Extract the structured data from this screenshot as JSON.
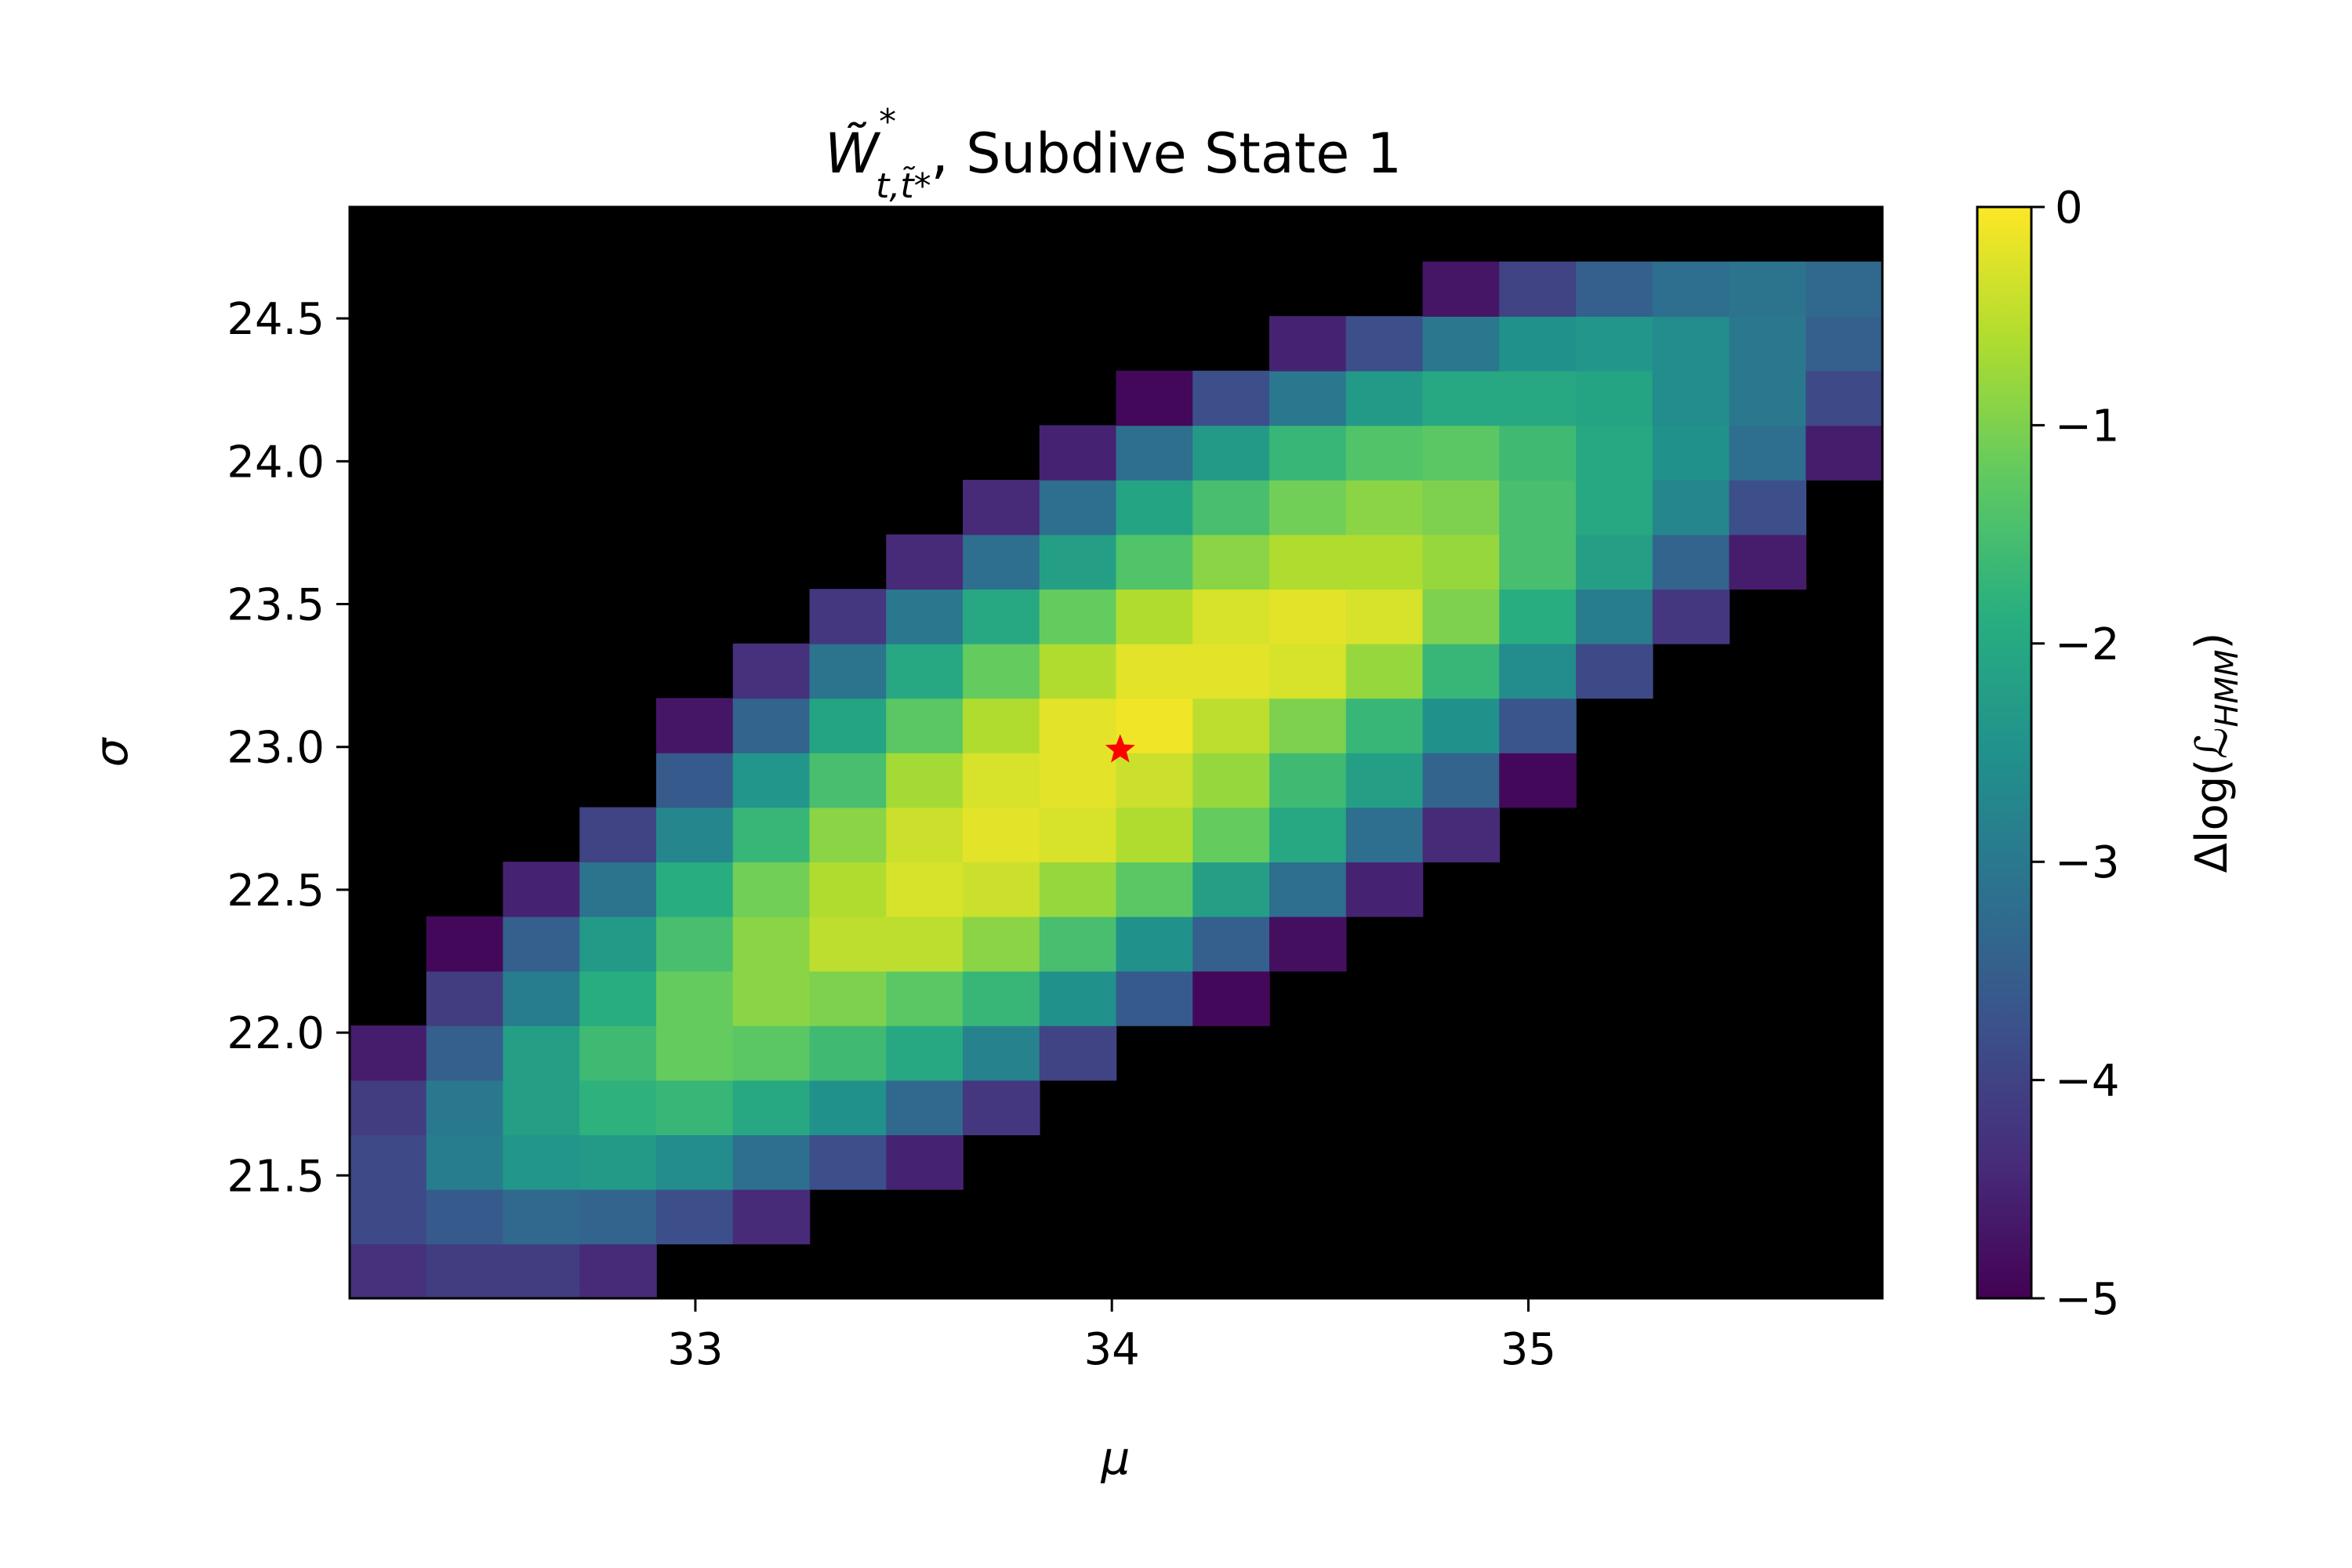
{
  "chart_data": {
    "type": "heatmap",
    "title_main": "W̃",
    "title_sup": "*",
    "title_sub": "t,t̃*",
    "title_rest": ", Subdive State 1",
    "xlabel": "μ",
    "ylabel": "σ",
    "xlim": [
      32.17,
      35.85
    ],
    "ylim": [
      21.07,
      24.89
    ],
    "x_ticks": [
      33,
      34,
      35
    ],
    "x_tick_labels": [
      "33",
      "34",
      "35"
    ],
    "y_ticks": [
      21.5,
      22.0,
      22.5,
      23.0,
      23.5,
      24.0,
      24.5
    ],
    "y_tick_labels": [
      "21.5",
      "22.0",
      "22.5",
      "23.0",
      "23.5",
      "24.0",
      "24.5"
    ],
    "cell_x_start": 32.17,
    "cell_x_step": 0.184,
    "cell_y_start": 21.07,
    "cell_y_step": 0.191,
    "z_masked_below": -5,
    "z": [
      [
        -4.3,
        -4.1,
        -4.1,
        -4.4,
        null,
        null,
        null,
        null,
        null,
        null,
        null,
        null,
        null,
        null,
        null,
        null,
        null,
        null,
        null,
        null
      ],
      [
        -3.9,
        -3.6,
        -3.3,
        -3.4,
        -3.8,
        -4.4,
        null,
        null,
        null,
        null,
        null,
        null,
        null,
        null,
        null,
        null,
        null,
        null,
        null,
        null
      ],
      [
        -3.9,
        -2.9,
        -2.4,
        -2.3,
        -2.6,
        -3.2,
        -3.8,
        -4.5,
        null,
        null,
        null,
        null,
        null,
        null,
        null,
        null,
        null,
        null,
        null,
        null
      ],
      [
        -4.1,
        -3.0,
        -2.2,
        -1.8,
        -1.7,
        -2.0,
        -2.5,
        -3.3,
        -4.2,
        null,
        null,
        null,
        null,
        null,
        null,
        null,
        null,
        null,
        null,
        null
      ],
      [
        -4.6,
        -3.5,
        -2.2,
        -1.6,
        -1.2,
        -1.3,
        -1.6,
        -2.0,
        -2.8,
        -4.0,
        null,
        null,
        null,
        null,
        null,
        null,
        null,
        null,
        null,
        null
      ],
      [
        null,
        -4.1,
        -2.9,
        -1.9,
        -1.2,
        -0.9,
        -1.0,
        -1.3,
        -1.7,
        -2.5,
        -3.6,
        -4.9,
        null,
        null,
        null,
        null,
        null,
        null,
        null,
        null
      ],
      [
        null,
        -4.9,
        -3.5,
        -2.3,
        -1.5,
        -0.9,
        -0.5,
        -0.5,
        -0.9,
        -1.5,
        -2.5,
        -3.5,
        -4.8,
        null,
        null,
        null,
        null,
        null,
        null,
        null
      ],
      [
        null,
        null,
        -4.5,
        -3.1,
        -1.9,
        -1.1,
        -0.6,
        -0.3,
        -0.4,
        -0.8,
        -1.3,
        -2.2,
        -3.2,
        -4.5,
        null,
        null,
        null,
        null,
        null,
        null
      ],
      [
        null,
        null,
        null,
        -4.0,
        -2.7,
        -1.7,
        -0.9,
        -0.4,
        -0.2,
        -0.3,
        -0.6,
        -1.2,
        -2.0,
        -3.2,
        -4.4,
        null,
        null,
        null,
        null,
        null
      ],
      [
        null,
        null,
        null,
        null,
        -3.6,
        -2.4,
        -1.5,
        -0.7,
        -0.3,
        -0.2,
        -0.4,
        -0.8,
        -1.6,
        -2.2,
        -3.4,
        -4.9,
        null,
        null,
        null,
        null
      ],
      [
        null,
        null,
        null,
        null,
        -4.7,
        -3.4,
        -2.1,
        -1.3,
        -0.6,
        -0.2,
        -0.1,
        -0.5,
        -1.0,
        -1.7,
        -2.5,
        -3.7,
        null,
        null,
        null,
        null
      ],
      [
        null,
        null,
        null,
        null,
        null,
        -4.3,
        -3.1,
        -2.0,
        -1.2,
        -0.6,
        -0.2,
        -0.2,
        -0.3,
        -0.8,
        -1.7,
        -2.6,
        -3.9,
        null,
        null,
        null
      ],
      [
        null,
        null,
        null,
        null,
        null,
        null,
        -4.2,
        -3.0,
        -2.0,
        -1.2,
        -0.6,
        -0.3,
        -0.2,
        -0.3,
        -1.0,
        -1.9,
        -2.9,
        -4.2,
        null,
        null
      ],
      [
        null,
        null,
        null,
        null,
        null,
        null,
        null,
        -4.4,
        -3.2,
        -2.2,
        -1.4,
        -0.9,
        -0.6,
        -0.6,
        -0.8,
        -1.5,
        -2.2,
        -3.4,
        -4.6,
        null
      ],
      [
        null,
        null,
        null,
        null,
        null,
        null,
        null,
        null,
        -4.4,
        -3.2,
        -2.1,
        -1.5,
        -1.1,
        -0.9,
        -1.0,
        -1.5,
        -2.0,
        -2.7,
        -3.8,
        null
      ],
      [
        null,
        null,
        null,
        null,
        null,
        null,
        null,
        null,
        null,
        -4.5,
        -3.2,
        -2.3,
        -1.7,
        -1.4,
        -1.3,
        -1.6,
        -2.0,
        -2.5,
        -3.2,
        -4.6
      ],
      [
        null,
        null,
        null,
        null,
        null,
        null,
        null,
        null,
        null,
        null,
        -4.9,
        -3.8,
        -3.0,
        -2.3,
        -2.0,
        -2.0,
        -2.1,
        -2.6,
        -3.0,
        -3.9
      ],
      [
        null,
        null,
        null,
        null,
        null,
        null,
        null,
        null,
        null,
        null,
        null,
        null,
        -4.5,
        -3.8,
        -3.0,
        -2.5,
        -2.4,
        -2.6,
        -3.0,
        -3.5
      ],
      [
        null,
        null,
        null,
        null,
        null,
        null,
        null,
        null,
        null,
        null,
        null,
        null,
        null,
        null,
        -4.7,
        -4.0,
        -3.5,
        -3.2,
        -3.1,
        -3.3
      ]
    ],
    "best_fit_marker": {
      "x": 34.02,
      "y": 22.99,
      "color": "#ff0000",
      "symbol": "star"
    },
    "colorbar": {
      "label": "Δlog(ℒ_HMM)",
      "label_main": "Δlog(ℒ",
      "label_sub": "HMM",
      "label_close": ")",
      "range": [
        -5,
        0
      ],
      "ticks": [
        0,
        -1,
        -2,
        -3,
        -4,
        -5
      ],
      "tick_labels": [
        "0",
        "−1",
        "−2",
        "−3",
        "−4",
        "−5"
      ],
      "colormap": "viridis"
    },
    "mask_color": "#000000",
    "grid": false
  }
}
